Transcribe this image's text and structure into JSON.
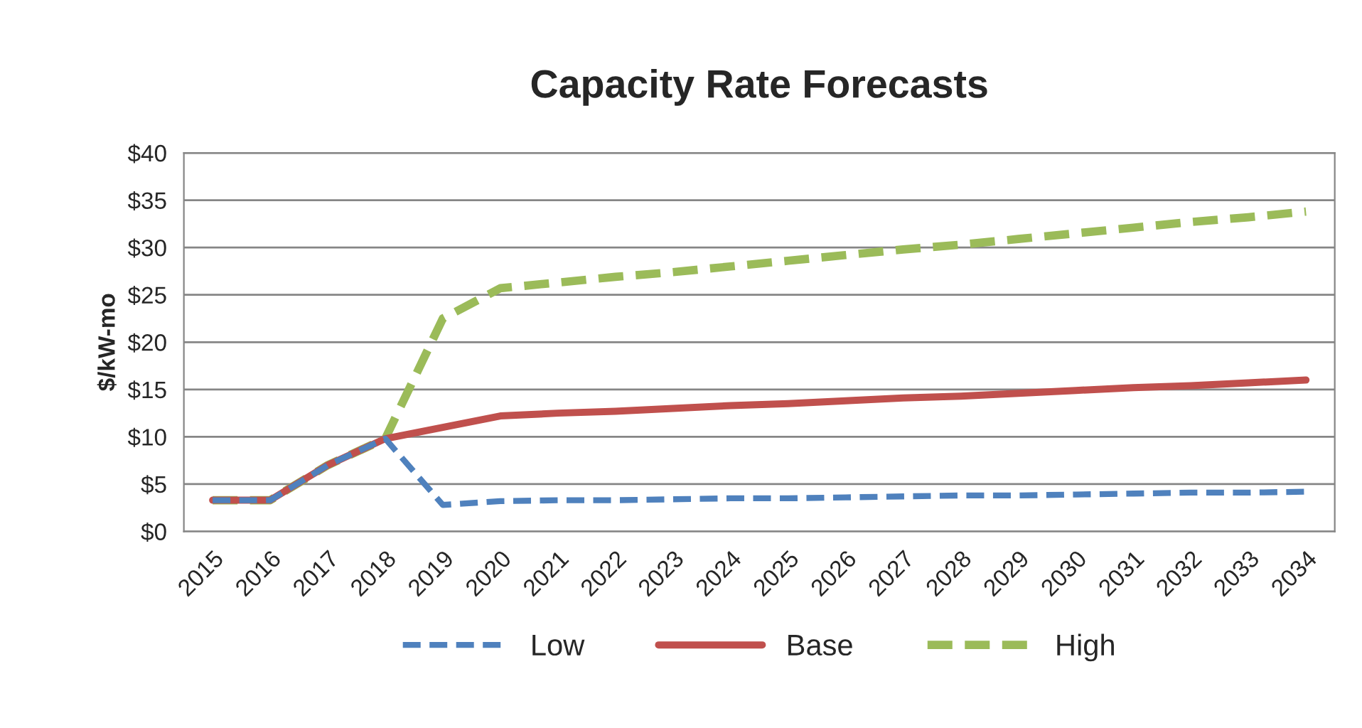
{
  "chart_data": {
    "type": "line",
    "title": "Capacity Rate Forecasts",
    "ylabel": "$/kW-mo",
    "categories": [
      "2015",
      "2016",
      "2017",
      "2018",
      "2019",
      "2020",
      "2021",
      "2022",
      "2023",
      "2024",
      "2025",
      "2026",
      "2027",
      "2028",
      "2029",
      "2030",
      "2031",
      "2032",
      "2033",
      "2034"
    ],
    "series": [
      {
        "name": "Low",
        "color": "#4f81bd",
        "line_style": "dashed",
        "values": [
          3.3,
          3.3,
          7,
          9.8,
          2.8,
          3.2,
          3.3,
          3.3,
          3.4,
          3.5,
          3.5,
          3.6,
          3.7,
          3.8,
          3.8,
          3.9,
          4.0,
          4.1,
          4.1,
          4.2
        ]
      },
      {
        "name": "Base",
        "color": "#c0504d",
        "line_style": "solid",
        "values": [
          3.3,
          3.3,
          7,
          9.8,
          11,
          12.2,
          12.5,
          12.7,
          13.0,
          13.3,
          13.5,
          13.8,
          14.1,
          14.3,
          14.6,
          14.9,
          15.2,
          15.4,
          15.7,
          16.0
        ]
      },
      {
        "name": "High",
        "color": "#9bbb59",
        "line_style": "dashed",
        "values": [
          3.3,
          3.3,
          7,
          9.8,
          22.5,
          25.7,
          26.3,
          26.9,
          27.4,
          28.0,
          28.6,
          29.2,
          29.8,
          30.3,
          30.9,
          31.5,
          32.1,
          32.7,
          33.2,
          33.8
        ]
      }
    ],
    "ylim": [
      0,
      40
    ],
    "yticks": [
      {
        "value": 0,
        "label": "$0"
      },
      {
        "value": 5,
        "label": "$5"
      },
      {
        "value": 10,
        "label": "$10"
      },
      {
        "value": 15,
        "label": "$15"
      },
      {
        "value": 20,
        "label": "$20"
      },
      {
        "value": 25,
        "label": "$25"
      },
      {
        "value": 30,
        "label": "$30"
      },
      {
        "value": 35,
        "label": "$35"
      },
      {
        "value": 40,
        "label": "$40"
      }
    ],
    "grid": "y",
    "legend": "bottom",
    "marker": "none"
  }
}
